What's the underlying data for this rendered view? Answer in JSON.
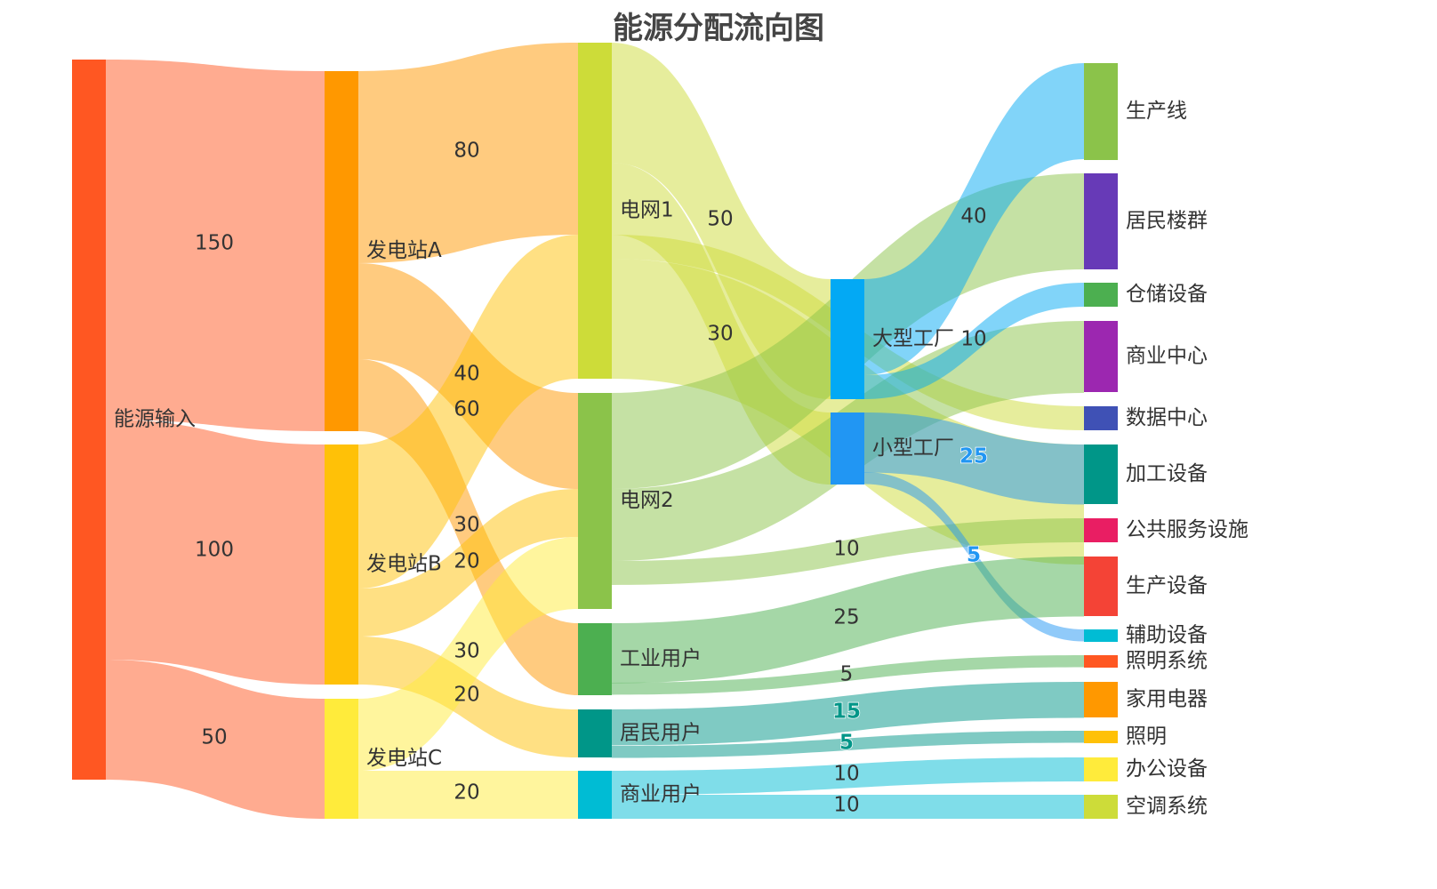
{
  "chart_data": {
    "type": "sankey",
    "title": "能源分配流向图",
    "nodes": [
      {
        "name": "能源输入",
        "color": "#FF5722"
      },
      {
        "name": "发电站A",
        "color": "#FF9800"
      },
      {
        "name": "发电站B",
        "color": "#FFC107"
      },
      {
        "name": "发电站C",
        "color": "#FFEB3B"
      },
      {
        "name": "电网1",
        "color": "#CDDC39"
      },
      {
        "name": "电网2",
        "color": "#8BC34A"
      },
      {
        "name": "工业用户",
        "color": "#4CAF50"
      },
      {
        "name": "居民用户",
        "color": "#009688"
      },
      {
        "name": "商业用户",
        "color": "#00BCD4"
      },
      {
        "name": "大型工厂",
        "color": "#03A9F4"
      },
      {
        "name": "小型工厂",
        "color": "#2196F3"
      },
      {
        "name": "生产线",
        "color": "#8BC34A"
      },
      {
        "name": "居民楼群",
        "color": "#673AB7"
      },
      {
        "name": "仓储设备",
        "color": "#4CAF50"
      },
      {
        "name": "商业中心",
        "color": "#9C27B0"
      },
      {
        "name": "数据中心",
        "color": "#3F51B5"
      },
      {
        "name": "加工设备",
        "color": "#009688"
      },
      {
        "name": "公共服务设施",
        "color": "#E91E63"
      },
      {
        "name": "生产设备",
        "color": "#F44336"
      },
      {
        "name": "辅助设备",
        "color": "#00BCD4"
      },
      {
        "name": "照明系统",
        "color": "#FF5722"
      },
      {
        "name": "家用电器",
        "color": "#FF9800"
      },
      {
        "name": "照明",
        "color": "#FFC107"
      },
      {
        "name": "办公设备",
        "color": "#FFEB3B"
      },
      {
        "name": "空调系统",
        "color": "#CDDC39"
      }
    ],
    "links": [
      {
        "source": "能源输入",
        "target": "发电站A",
        "value": 150,
        "label": "150"
      },
      {
        "source": "能源输入",
        "target": "发电站B",
        "value": 100,
        "label": "100"
      },
      {
        "source": "能源输入",
        "target": "发电站C",
        "value": 50,
        "label": "50"
      },
      {
        "source": "发电站A",
        "target": "电网1",
        "value": 80,
        "label": "80"
      },
      {
        "source": "发电站A",
        "target": "电网2",
        "value": 40,
        "label": "40"
      },
      {
        "source": "发电站A",
        "target": "工业用户",
        "value": 30,
        "label": "30"
      },
      {
        "source": "发电站B",
        "target": "电网1",
        "value": 60,
        "label": "60"
      },
      {
        "source": "发电站B",
        "target": "电网2",
        "value": 20,
        "label": "20"
      },
      {
        "source": "发电站B",
        "target": "居民用户",
        "value": 20,
        "label": "20"
      },
      {
        "source": "发电站C",
        "target": "电网2",
        "value": 30,
        "label": "30"
      },
      {
        "source": "发电站C",
        "target": "商业用户",
        "value": 20,
        "label": "20"
      },
      {
        "source": "电网1",
        "target": "大型工厂",
        "value": 50,
        "label": "50"
      },
      {
        "source": "电网1",
        "target": "小型工厂",
        "value": 30,
        "label": "30"
      },
      {
        "source": "电网1",
        "target": "数据中心",
        "value": 10,
        "label": ""
      },
      {
        "source": "电网1",
        "target": "加工设备",
        "value": 50,
        "label": ""
      },
      {
        "source": "电网2",
        "target": "居民楼群",
        "value": 40,
        "label": ""
      },
      {
        "source": "电网2",
        "target": "商业中心",
        "value": 30,
        "label": ""
      },
      {
        "source": "电网2",
        "target": "公共服务设施",
        "value": 10,
        "label": "10"
      },
      {
        "source": "大型工厂",
        "target": "生产线",
        "value": 40,
        "label": "40"
      },
      {
        "source": "大型工厂",
        "target": "仓储设备",
        "value": 10,
        "label": "10"
      },
      {
        "source": "小型工厂",
        "target": "加工设备",
        "value": 25,
        "label": "25",
        "labelColor": "#2196F3"
      },
      {
        "source": "小型工厂",
        "target": "辅助设备",
        "value": 5,
        "label": "5",
        "labelColor": "#2196F3"
      },
      {
        "source": "工业用户",
        "target": "生产设备",
        "value": 25,
        "label": "25"
      },
      {
        "source": "工业用户",
        "target": "照明系统",
        "value": 5,
        "label": "5"
      },
      {
        "source": "居民用户",
        "target": "家用电器",
        "value": 15,
        "label": "15",
        "labelColor": "#009688"
      },
      {
        "source": "居民用户",
        "target": "照明",
        "value": 5,
        "label": "5",
        "labelColor": "#009688"
      },
      {
        "source": "商业用户",
        "target": "办公设备",
        "value": 10,
        "label": "10"
      },
      {
        "source": "商业用户",
        "target": "空调系统",
        "value": 10,
        "label": "10"
      }
    ]
  }
}
